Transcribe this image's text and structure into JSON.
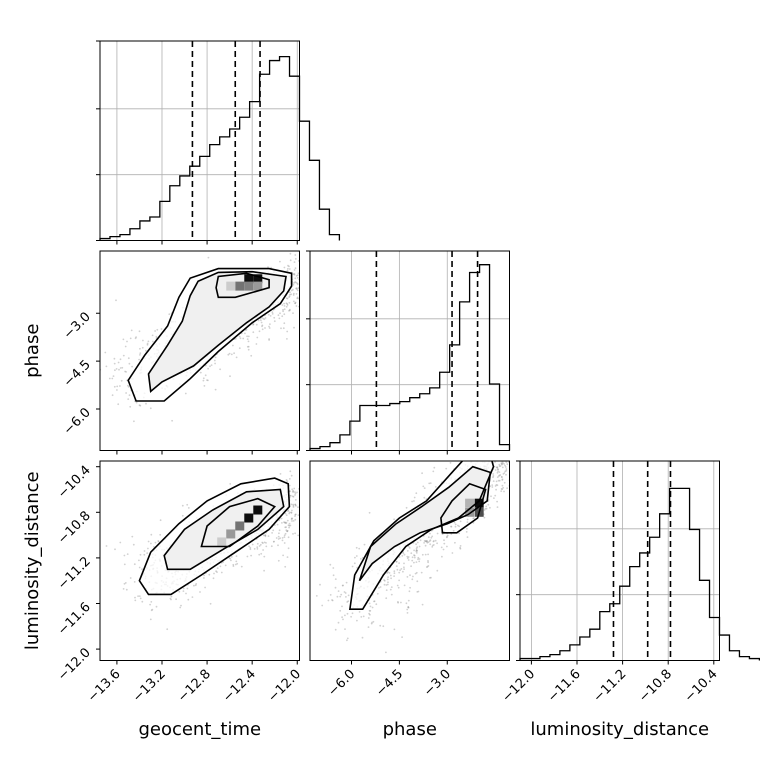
{
  "chart_data": {
    "type": "corner",
    "parameters": [
      "geocent_time",
      "phase",
      "luminosity_distance"
    ],
    "axes": {
      "geocent_time": {
        "label": "geocent_time",
        "range": [
          -13.75,
          -11.98
        ],
        "ticks": [
          -13.6,
          -13.2,
          -12.8,
          -12.4,
          -12.0
        ],
        "tick_labels": [
          "−13.6",
          "−13.2",
          "−12.8",
          "−12.4",
          "−12.0"
        ]
      },
      "phase": {
        "label": "phase",
        "range": [
          -7.3,
          -1.05
        ],
        "ticks": [
          -6.0,
          -4.5,
          -3.0
        ],
        "tick_labels": [
          "−6.0",
          "−4.5",
          "−3.0"
        ]
      },
      "luminosity_distance": {
        "label": "luminosity_distance",
        "range": [
          -12.1,
          -10.35
        ],
        "ticks": [
          -12.0,
          -11.6,
          -11.2,
          -10.8,
          -10.4
        ],
        "tick_labels": [
          "−12.0",
          "−11.6",
          "−11.2",
          "−10.8",
          "−10.4"
        ]
      }
    },
    "histograms": [
      {
        "parameter": "geocent_time",
        "bin_start": -13.75,
        "bin_width": 0.0885,
        "counts": [
          0.01,
          0.02,
          0.03,
          0.06,
          0.1,
          0.12,
          0.2,
          0.28,
          0.33,
          0.38,
          0.43,
          0.49,
          0.53,
          0.57,
          0.63,
          0.71,
          0.85,
          0.92,
          0.94,
          0.84,
          0.61,
          0.41,
          0.16,
          0.03
        ],
        "quantiles": [
          -12.93,
          -12.55,
          -12.33
        ]
      },
      {
        "parameter": "phase",
        "bin_start": -7.3,
        "bin_width": 0.3125,
        "counts": [
          0.01,
          0.02,
          0.04,
          0.08,
          0.15,
          0.23,
          0.23,
          0.23,
          0.24,
          0.25,
          0.27,
          0.29,
          0.32,
          0.4,
          0.54,
          0.76,
          0.91,
          0.95,
          0.34,
          0.03
        ],
        "quantiles": [
          -5.22,
          -2.85,
          -2.05
        ]
      },
      {
        "parameter": "luminosity_distance",
        "bin_start": -12.1,
        "bin_width": 0.0875,
        "counts": [
          0.01,
          0.01,
          0.02,
          0.03,
          0.05,
          0.08,
          0.12,
          0.16,
          0.25,
          0.29,
          0.38,
          0.48,
          0.55,
          0.63,
          0.75,
          0.88,
          0.88,
          0.67,
          0.41,
          0.22,
          0.13,
          0.05,
          0.02,
          0.01
        ],
        "quantiles": [
          -11.28,
          -10.98,
          -10.78
        ]
      }
    ],
    "pairs": [
      {
        "x": "geocent_time",
        "y": "phase",
        "contours": [
          [
            [
              -13.43,
              -5.75
            ],
            [
              -13.18,
              -5.75
            ],
            [
              -12.95,
              -5.05
            ],
            [
              -12.7,
              -4.2
            ],
            [
              -12.4,
              -3.3
            ],
            [
              -12.15,
              -2.7
            ],
            [
              -12.05,
              -2.15
            ],
            [
              -12.05,
              -1.75
            ],
            [
              -12.25,
              -1.6
            ],
            [
              -12.7,
              -1.6
            ],
            [
              -12.95,
              -1.9
            ],
            [
              -13.05,
              -2.5
            ],
            [
              -13.15,
              -3.4
            ],
            [
              -13.35,
              -4.3
            ],
            [
              -13.5,
              -5.1
            ]
          ],
          [
            [
              -13.3,
              -5.45
            ],
            [
              -13.2,
              -5.15
            ],
            [
              -12.92,
              -4.65
            ],
            [
              -12.7,
              -4.0
            ],
            [
              -12.45,
              -3.3
            ],
            [
              -12.25,
              -2.8
            ],
            [
              -12.12,
              -2.3
            ],
            [
              -12.1,
              -1.85
            ],
            [
              -12.4,
              -1.7
            ],
            [
              -12.7,
              -1.72
            ],
            [
              -12.88,
              -2.0
            ],
            [
              -12.95,
              -2.45
            ],
            [
              -13.02,
              -3.25
            ],
            [
              -13.15,
              -4.0
            ],
            [
              -13.32,
              -4.9
            ]
          ],
          [
            [
              -12.7,
              -2.5
            ],
            [
              -12.55,
              -2.5
            ],
            [
              -12.25,
              -2.2
            ],
            [
              -12.25,
              -1.95
            ],
            [
              -12.45,
              -1.75
            ],
            [
              -12.7,
              -1.85
            ],
            [
              -12.72,
              -2.2
            ]
          ]
        ],
        "density_cells": [
          {
            "x": -12.43,
            "y": -1.92,
            "level": 0.95
          },
          {
            "x": -12.35,
            "y": -1.92,
            "level": 0.95
          },
          {
            "x": -12.51,
            "y": -2.15,
            "level": 0.55
          },
          {
            "x": -12.43,
            "y": -2.15,
            "level": 0.5
          },
          {
            "x": -12.35,
            "y": -2.15,
            "level": 0.4
          },
          {
            "x": -12.59,
            "y": -2.15,
            "level": 0.2
          }
        ]
      },
      {
        "x": "geocent_time",
        "y": "luminosity_distance",
        "contours": [
          [
            [
              -13.32,
              -11.52
            ],
            [
              -13.12,
              -11.52
            ],
            [
              -12.85,
              -11.35
            ],
            [
              -12.55,
              -11.15
            ],
            [
              -12.25,
              -10.95
            ],
            [
              -12.07,
              -10.75
            ],
            [
              -12.08,
              -10.55
            ],
            [
              -12.2,
              -10.5
            ],
            [
              -12.5,
              -10.55
            ],
            [
              -12.8,
              -10.7
            ],
            [
              -13.05,
              -10.9
            ],
            [
              -13.3,
              -11.15
            ],
            [
              -13.4,
              -11.4
            ]
          ],
          [
            [
              -13.15,
              -11.3
            ],
            [
              -12.95,
              -11.3
            ],
            [
              -12.65,
              -11.12
            ],
            [
              -12.35,
              -10.95
            ],
            [
              -12.12,
              -10.75
            ],
            [
              -12.15,
              -10.6
            ],
            [
              -12.45,
              -10.62
            ],
            [
              -12.75,
              -10.78
            ],
            [
              -13.0,
              -10.95
            ],
            [
              -13.18,
              -11.18
            ]
          ],
          [
            [
              -12.85,
              -11.1
            ],
            [
              -12.6,
              -11.1
            ],
            [
              -12.35,
              -10.92
            ],
            [
              -12.2,
              -10.75
            ],
            [
              -12.35,
              -10.68
            ],
            [
              -12.6,
              -10.75
            ],
            [
              -12.8,
              -10.92
            ]
          ]
        ],
        "density_cells": [
          {
            "x": -12.35,
            "y": -10.78,
            "level": 0.95
          },
          {
            "x": -12.43,
            "y": -10.85,
            "level": 0.95
          },
          {
            "x": -12.51,
            "y": -10.92,
            "level": 0.55
          },
          {
            "x": -12.59,
            "y": -10.99,
            "level": 0.4
          },
          {
            "x": -12.67,
            "y": -11.06,
            "level": 0.2
          }
        ]
      },
      {
        "x": "phase",
        "y": "luminosity_distance",
        "contours": [
          [
            [
              -6.05,
              -11.65
            ],
            [
              -5.65,
              -11.65
            ],
            [
              -5.0,
              -11.35
            ],
            [
              -4.3,
              -11.1
            ],
            [
              -3.5,
              -10.95
            ],
            [
              -2.65,
              -10.85
            ],
            [
              -2.0,
              -10.7
            ],
            [
              -1.55,
              -10.4
            ],
            [
              -1.7,
              -10.25
            ],
            [
              -2.2,
              -10.25
            ],
            [
              -2.85,
              -10.45
            ],
            [
              -3.65,
              -10.7
            ],
            [
              -4.5,
              -10.85
            ],
            [
              -5.3,
              -11.05
            ],
            [
              -5.9,
              -11.35
            ]
          ],
          [
            [
              -5.75,
              -11.4
            ],
            [
              -5.35,
              -11.25
            ],
            [
              -4.65,
              -11.1
            ],
            [
              -3.85,
              -10.98
            ],
            [
              -3.0,
              -10.9
            ],
            [
              -2.35,
              -10.82
            ],
            [
              -1.75,
              -10.7
            ],
            [
              -1.65,
              -10.45
            ],
            [
              -2.2,
              -10.4
            ],
            [
              -2.95,
              -10.58
            ],
            [
              -3.8,
              -10.75
            ],
            [
              -4.6,
              -10.9
            ],
            [
              -5.4,
              -11.1
            ]
          ],
          [
            [
              -3.15,
              -10.98
            ],
            [
              -2.7,
              -10.98
            ],
            [
              -2.05,
              -10.85
            ],
            [
              -1.8,
              -10.6
            ],
            [
              -2.3,
              -10.55
            ],
            [
              -2.85,
              -10.7
            ],
            [
              -3.2,
              -10.85
            ]
          ]
        ],
        "density_cells": [
          {
            "x": -2.0,
            "y": -10.72,
            "level": 0.95
          },
          {
            "x": -2.0,
            "y": -10.8,
            "level": 0.7
          },
          {
            "x": -2.3,
            "y": -10.8,
            "level": 0.4
          },
          {
            "x": -2.3,
            "y": -10.72,
            "level": 0.3
          }
        ]
      }
    ]
  }
}
